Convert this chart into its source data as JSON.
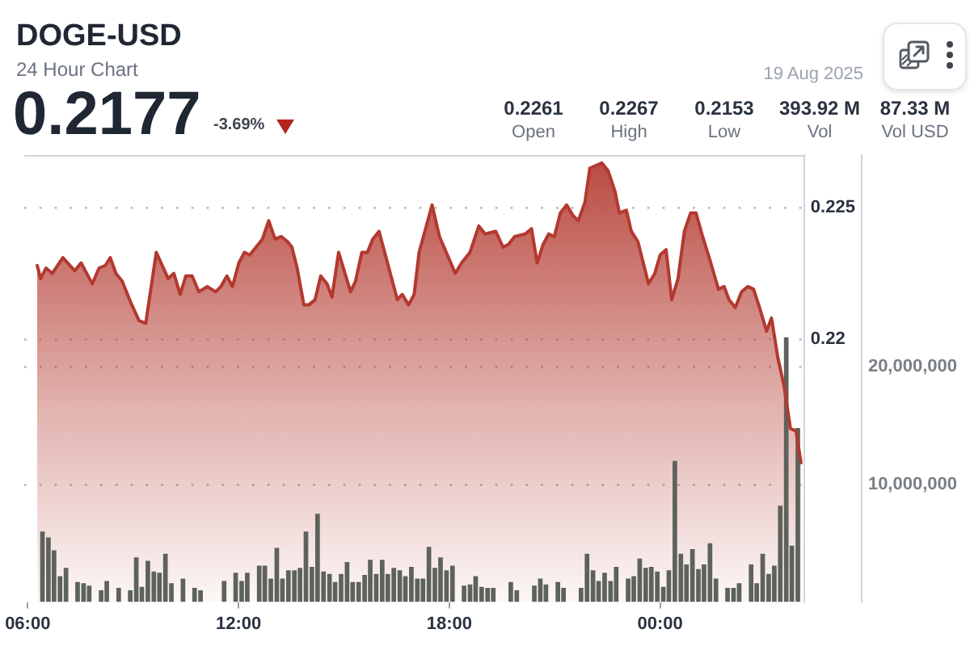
{
  "chart_data": {
    "type": "area",
    "title": "DOGE-USD",
    "subtitle": "24 Hour Chart",
    "annotations": [
      "0.2177",
      "-3.69%",
      "0.2261",
      "Open",
      "0.2267",
      "High",
      "0.2153",
      "Low",
      "393.92 M",
      "Vol",
      "87.33 M",
      "Vol USD",
      "19 Aug 2025"
    ],
    "series": [
      {
        "color": "#b3392f",
        "x": [
          6.27,
          6.37,
          6.52,
          6.7,
          7.0,
          7.34,
          7.52,
          7.84,
          8.03,
          8.21,
          8.35,
          8.51,
          8.69,
          8.93,
          9.17,
          9.36,
          9.66,
          10.0,
          10.16,
          10.34,
          10.5,
          10.68,
          10.87,
          11.11,
          11.35,
          11.5,
          11.67,
          11.83,
          12.01,
          12.17,
          12.32,
          12.5,
          12.68,
          12.86,
          13.04,
          13.22,
          13.4,
          13.52,
          13.67,
          13.86,
          14.0,
          14.18,
          14.34,
          14.52,
          14.66,
          14.85,
          15.19,
          15.33,
          15.51,
          15.67,
          15.82,
          16.0,
          16.24,
          16.52,
          16.66,
          16.84,
          17.0,
          17.14,
          17.51,
          17.72,
          18.17,
          18.35,
          18.59,
          18.84,
          19.02,
          19.32,
          19.53,
          19.68,
          19.86,
          20.16,
          20.34,
          20.5,
          20.67,
          20.83,
          20.99,
          21.16,
          21.34,
          21.52,
          21.67,
          21.86,
          22.0,
          22.34,
          22.52,
          22.72,
          22.84,
          23.04,
          23.18,
          23.37,
          23.67,
          23.85,
          24.0,
          24.17,
          24.33,
          24.51,
          24.69,
          24.87,
          25.02,
          25.21,
          25.42,
          25.66,
          25.82,
          25.96,
          26.14,
          26.32,
          26.5,
          26.66,
          26.83,
          27.03,
          27.17,
          27.35,
          27.53,
          27.71,
          27.87,
          28.01
        ],
        "values": [
          0.2228,
          0.2223,
          0.2227,
          0.2225,
          0.2231,
          0.2226,
          0.2229,
          0.2221,
          0.2227,
          0.2228,
          0.2231,
          0.2225,
          0.2222,
          0.2214,
          0.2207,
          0.2206,
          0.2233,
          0.2223,
          0.2225,
          0.2217,
          0.2224,
          0.2224,
          0.2218,
          0.222,
          0.2218,
          0.222,
          0.2224,
          0.222,
          0.2229,
          0.2233,
          0.2232,
          0.2235,
          0.2238,
          0.2245,
          0.2238,
          0.2239,
          0.2237,
          0.2235,
          0.2227,
          0.2213,
          0.2213,
          0.2215,
          0.2224,
          0.2221,
          0.2216,
          0.2233,
          0.2218,
          0.2222,
          0.2233,
          0.2233,
          0.2238,
          0.2241,
          0.2229,
          0.2215,
          0.2217,
          0.2213,
          0.2217,
          0.2233,
          0.2251,
          0.2239,
          0.2225,
          0.2229,
          0.2233,
          0.2243,
          0.224,
          0.2241,
          0.2235,
          0.2236,
          0.2239,
          0.224,
          0.2242,
          0.2229,
          0.2236,
          0.224,
          0.2239,
          0.2248,
          0.2251,
          0.2247,
          0.2245,
          0.2252,
          0.2265,
          0.2267,
          0.2264,
          0.2256,
          0.2248,
          0.2249,
          0.2241,
          0.2237,
          0.2221,
          0.2225,
          0.2232,
          0.2234,
          0.2215,
          0.2223,
          0.2241,
          0.2248,
          0.2248,
          0.2239,
          0.223,
          0.2219,
          0.222,
          0.2215,
          0.2212,
          0.2218,
          0.222,
          0.2219,
          0.2212,
          0.2203,
          0.2208,
          0.2193,
          0.2182,
          0.2166,
          0.2165,
          0.2153
        ]
      },
      {
        "type": "bar",
        "color": "#5d625b",
        "axis": "y2",
        "x": [
          6.42,
          6.59,
          6.75,
          6.92,
          7.09,
          7.42,
          7.59,
          7.75,
          8.09,
          8.25,
          8.59,
          8.92,
          9.09,
          9.25,
          9.42,
          9.59,
          9.75,
          9.92,
          10.09,
          10.42,
          10.75,
          10.92,
          11.59,
          11.92,
          12.09,
          12.25,
          12.59,
          12.75,
          12.92,
          13.09,
          13.25,
          13.42,
          13.59,
          13.75,
          13.92,
          14.09,
          14.25,
          14.42,
          14.59,
          14.75,
          14.92,
          15.09,
          15.25,
          15.42,
          15.59,
          15.75,
          15.92,
          16.09,
          16.25,
          16.42,
          16.59,
          16.75,
          16.92,
          17.09,
          17.25,
          17.42,
          17.59,
          17.75,
          17.92,
          18.09,
          18.42,
          18.59,
          18.75,
          18.92,
          19.09,
          19.25,
          19.75,
          19.92,
          20.42,
          20.59,
          20.75,
          21.09,
          21.25,
          21.75,
          21.92,
          22.09,
          22.25,
          22.42,
          22.59,
          22.75,
          23.09,
          23.25,
          23.42,
          23.59,
          23.75,
          23.92,
          24.09,
          24.25,
          24.42,
          24.59,
          24.75,
          24.92,
          25.09,
          25.25,
          25.42,
          25.59,
          25.92,
          26.09,
          26.25,
          26.59,
          26.75,
          26.92,
          27.09,
          27.25,
          27.42,
          27.59,
          27.75,
          27.92
        ],
        "values": [
          6000000,
          5500000,
          4400000,
          2200000,
          2900000,
          1700000,
          1600000,
          1400000,
          1000000,
          1800000,
          1200000,
          1000000,
          3800000,
          1300000,
          3500000,
          2600000,
          2500000,
          4100000,
          1600000,
          2000000,
          1200000,
          1000000,
          1800000,
          2500000,
          1800000,
          2500000,
          3100000,
          3100000,
          2000000,
          4600000,
          2000000,
          2700000,
          2700000,
          2900000,
          6000000,
          3000000,
          7500000,
          2600000,
          2400000,
          1700000,
          2400000,
          3400000,
          1700000,
          1700000,
          2300000,
          3600000,
          2400000,
          3600000,
          2400000,
          2900000,
          2700000,
          2200000,
          3000000,
          2000000,
          2000000,
          4700000,
          2900000,
          3800000,
          2700000,
          3100000,
          1400000,
          1500000,
          2200000,
          1300000,
          1200000,
          1200000,
          1700000,
          1000000,
          1400000,
          2000000,
          1500000,
          1700000,
          1200000,
          1200000,
          4100000,
          2700000,
          1800000,
          2500000,
          1800000,
          3000000,
          2000000,
          2200000,
          3700000,
          2900000,
          3000000,
          2600000,
          1300000,
          2700000,
          12000000,
          4100000,
          3200000,
          4500000,
          2800000,
          3200000,
          5000000,
          2000000,
          1200000,
          1200000,
          1600000,
          3200000,
          1600000,
          4100000,
          2400000,
          3100000,
          8200000,
          22500000,
          4800000,
          14800000
        ]
      }
    ],
    "xlim": [
      5.9,
      28.1
    ],
    "xticks": [
      {
        "value": 6,
        "label": "06:00"
      },
      {
        "value": 12,
        "label": "12:00"
      },
      {
        "value": 18,
        "label": "18:00"
      },
      {
        "value": 24,
        "label": "00:00"
      }
    ],
    "ylim": [
      0.21,
      0.227
    ],
    "yticks": [
      0.22,
      0.225
    ],
    "y2lim": [
      0,
      38000000
    ],
    "y2ticks": [
      {
        "value": 10000000,
        "label": "10,000,000"
      },
      {
        "value": 20000000,
        "label": "20,000,000"
      }
    ],
    "grid": "y",
    "legend": false,
    "marker": "none"
  }
}
